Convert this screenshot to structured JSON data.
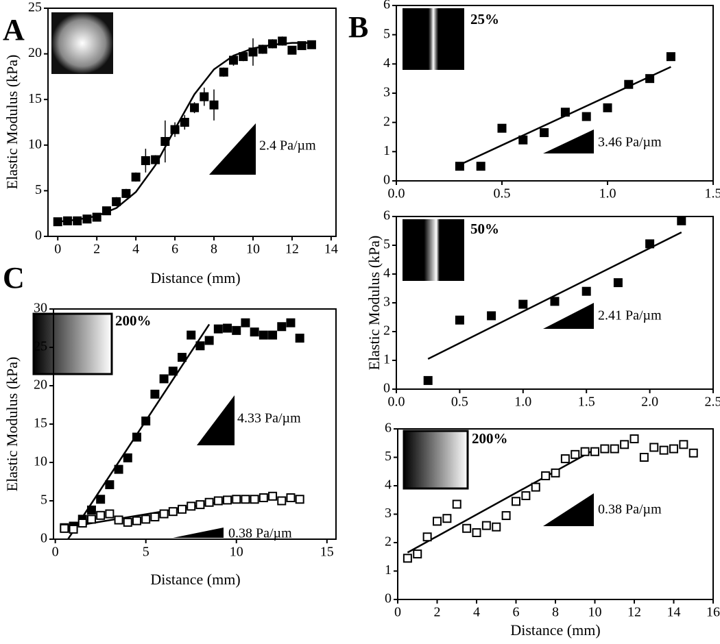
{
  "chart_data": [
    {
      "type": "scatter",
      "panel_label": "A",
      "x_label": "Distance (mm)",
      "y_label": "Elastic Modulus (kPa)",
      "xlim": [
        -0.5,
        14.25
      ],
      "ylim": [
        0,
        25
      ],
      "xticks": [
        0,
        2,
        4,
        6,
        8,
        10,
        12,
        14
      ],
      "yticks": [
        0,
        5,
        10,
        15,
        20,
        25
      ],
      "annotations": [
        "2.4 Pa/µm"
      ],
      "series": [
        {
          "marker": "filled-square",
          "color": "#000000",
          "x": [
            0,
            0.5,
            1,
            1.5,
            2,
            2.5,
            3,
            3.5,
            4,
            4.5,
            5,
            5.5,
            6,
            6.5,
            7,
            7.5,
            8,
            8.5,
            9,
            9.5,
            10,
            10.5,
            11,
            11.5,
            12,
            12.5,
            13
          ],
          "values": [
            1.6,
            1.7,
            1.7,
            1.9,
            2.1,
            2.8,
            3.8,
            4.7,
            6.5,
            8.3,
            8.4,
            10.4,
            11.7,
            12.5,
            14.1,
            15.3,
            14.4,
            18,
            19.3,
            19.7,
            20.2,
            20.5,
            21.1,
            21.4,
            20.4,
            20.9,
            21
          ],
          "errors": [
            0.3,
            0.3,
            0.3,
            0.3,
            0.3,
            0.4,
            0.5,
            0.5,
            0.5,
            1.3,
            0.5,
            2.3,
            0.8,
            0.8,
            0.6,
            1,
            1.7,
            0.5,
            0.6,
            0.5,
            1.5,
            0.5,
            0.5,
            0.5,
            0.4,
            0.4,
            0.4
          ]
        }
      ],
      "fits": [
        {
          "x": [
            0,
            1,
            2,
            3,
            4,
            5,
            6,
            7,
            8,
            9,
            10,
            11,
            12,
            13
          ],
          "values": [
            1.6,
            1.83,
            2.23,
            3.1,
            4.86,
            7.8,
            11.76,
            15.57,
            18.3,
            19.8,
            20.6,
            21,
            21.2,
            21.2
          ]
        }
      ]
    },
    {
      "type": "scatter",
      "panel_label": "B",
      "inset_label": "25%",
      "xlim": [
        0,
        1.5
      ],
      "ylim": [
        0,
        6
      ],
      "xticks": [
        {
          "value": 0,
          "label": "0.0"
        },
        0.5,
        {
          "value": 1,
          "label": "1.0"
        },
        1.5
      ],
      "yticks": [
        0,
        1,
        2,
        3,
        4,
        5,
        6
      ],
      "annotations": [
        "3.46 Pa/µm"
      ],
      "series": [
        {
          "marker": "filled-square",
          "color": "#000000",
          "x": [
            0.3,
            0.4,
            0.5,
            0.6,
            0.7,
            0.8,
            0.9,
            1.0,
            1.1,
            1.2,
            1.3
          ],
          "values": [
            0.5,
            0.5,
            1.8,
            1.4,
            1.65,
            2.35,
            2.2,
            2.5,
            3.3,
            3.5,
            4.25
          ]
        }
      ],
      "fits": [
        {
          "x": [
            0.3,
            1.3
          ],
          "values": [
            0.55,
            3.9
          ]
        }
      ]
    },
    {
      "type": "scatter",
      "inset_label": "50%",
      "y_label": "Elastic Modulus (kPa)",
      "xlim": [
        0,
        2.5
      ],
      "ylim": [
        0,
        6
      ],
      "xticks": [
        {
          "value": 0,
          "label": "0.0"
        },
        0.5,
        {
          "value": 1,
          "label": "1.0"
        },
        1.5,
        {
          "value": 2,
          "label": "2.0"
        },
        2.5
      ],
      "yticks": [
        0,
        1,
        2,
        3,
        4,
        5,
        6
      ],
      "annotations": [
        "2.41 Pa/µm"
      ],
      "series": [
        {
          "marker": "filled-square",
          "color": "#000000",
          "x": [
            0.25,
            0.5,
            0.75,
            1.0,
            1.25,
            1.5,
            1.75,
            2.0,
            2.25
          ],
          "values": [
            0.3,
            2.4,
            2.55,
            2.95,
            3.05,
            3.4,
            3.7,
            5.05,
            5.85
          ]
        }
      ],
      "fits": [
        {
          "x": [
            0.25,
            2.25
          ],
          "values": [
            1.05,
            5.45
          ]
        }
      ]
    },
    {
      "type": "scatter",
      "inset_label": "200%",
      "x_label": "Distance (mm)",
      "xlim": [
        0,
        16
      ],
      "ylim": [
        0,
        6
      ],
      "xticks": [
        0,
        2,
        4,
        6,
        8,
        10,
        12,
        14,
        16
      ],
      "yticks": [
        0,
        1,
        2,
        3,
        4,
        5,
        6
      ],
      "annotations": [
        "0.38 Pa/µm"
      ],
      "series": [
        {
          "marker": "open-square",
          "color": "#000000",
          "x": [
            0.5,
            1,
            1.5,
            2,
            2.5,
            3,
            3.5,
            4,
            4.5,
            5,
            5.5,
            6,
            6.5,
            7,
            7.5,
            8,
            8.5,
            9,
            9.5,
            10,
            10.5,
            11,
            11.5,
            12,
            12.5,
            13,
            13.5,
            14,
            14.5,
            15
          ],
          "values": [
            1.45,
            1.6,
            2.2,
            2.75,
            2.85,
            3.35,
            2.5,
            2.35,
            2.6,
            2.55,
            2.95,
            3.45,
            3.65,
            3.95,
            4.35,
            4.45,
            4.95,
            5.1,
            5.2,
            5.2,
            5.3,
            5.3,
            5.45,
            5.65,
            5.0,
            5.35,
            5.25,
            5.3,
            5.45,
            5.15
          ]
        }
      ],
      "fits": [
        {
          "x": [
            0.5,
            9.8
          ],
          "values": [
            1.65,
            5.2
          ]
        }
      ]
    },
    {
      "type": "scatter",
      "panel_label": "C",
      "inset_label": "200%",
      "x_label": "Distance (mm)",
      "y_label": "Elastic Modulus (kPa)",
      "xlim": [
        -0.1,
        15.5
      ],
      "ylim": [
        0,
        30
      ],
      "xticks": [
        0,
        5,
        10,
        15
      ],
      "yticks": [
        0,
        5,
        10,
        15,
        20,
        25,
        30
      ],
      "annotations": [
        "4.33 Pa/µm",
        "0.38 Pa/µm"
      ],
      "series": [
        {
          "marker": "filled-square",
          "color": "#000000",
          "x": [
            0.5,
            1,
            1.5,
            2,
            2.5,
            3,
            3.5,
            4,
            4.5,
            5,
            5.5,
            6,
            6.5,
            7,
            7.5,
            8,
            8.5,
            9,
            9.5,
            10,
            10.5,
            11,
            11.5,
            12,
            12.5,
            13,
            13.5
          ],
          "values": [
            1.5,
            1.7,
            2.6,
            3.8,
            5.2,
            7.1,
            9.1,
            10.6,
            13.3,
            15.4,
            18.9,
            20.9,
            21.9,
            23.7,
            26.6,
            25.2,
            25.9,
            27.4,
            27.5,
            27.2,
            28.2,
            27.0,
            26.6,
            26.6,
            27.7,
            28.2,
            26.2
          ]
        },
        {
          "marker": "open-square",
          "color": "#000000",
          "x": [
            0.5,
            1,
            1.5,
            2,
            2.5,
            3,
            3.5,
            4,
            4.5,
            5,
            5.5,
            6,
            6.5,
            7,
            7.5,
            8,
            8.5,
            9,
            9.5,
            10,
            10.5,
            11,
            11.5,
            12,
            12.5,
            13,
            13.5
          ],
          "values": [
            1.4,
            1.3,
            2.1,
            2.6,
            3.1,
            3.3,
            2.5,
            2.2,
            2.4,
            2.6,
            2.9,
            3.3,
            3.6,
            3.9,
            4.3,
            4.5,
            4.8,
            5.0,
            5.1,
            5.2,
            5.2,
            5.2,
            5.4,
            5.6,
            5.0,
            5.4,
            5.2
          ]
        }
      ],
      "fits": [
        {
          "x": [
            0.7,
            8.5
          ],
          "values": [
            0,
            28
          ]
        },
        {
          "x": [
            0.5,
            9.5
          ],
          "values": [
            1.5,
            5.0
          ]
        }
      ]
    }
  ]
}
